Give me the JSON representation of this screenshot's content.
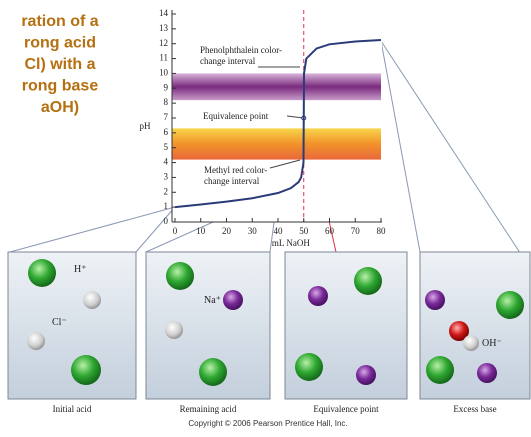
{
  "chart_data": {
    "type": "line",
    "title": [
      "ration of a",
      "rong acid",
      "Cl) with a",
      "rong base",
      "aOH)"
    ],
    "x_label": "mL NaOH",
    "y_label": "pH",
    "x": [
      0,
      10,
      20,
      30,
      40,
      45,
      48,
      49,
      49.9,
      50,
      50.1,
      51,
      55,
      60,
      70,
      80
    ],
    "series": [
      {
        "color": "#2b3a78",
        "values": [
          1.0,
          1.18,
          1.37,
          1.6,
          1.95,
          2.28,
          2.69,
          3.0,
          4.0,
          7.0,
          10.0,
          11.0,
          11.68,
          11.96,
          12.15,
          12.25
        ]
      }
    ],
    "xlim": [
      0,
      80
    ],
    "ylim": [
      0,
      14
    ],
    "xticks": [
      0,
      10,
      20,
      30,
      40,
      50,
      60,
      70,
      80
    ],
    "yticks": [
      0,
      1,
      2,
      3,
      4,
      5,
      6,
      7,
      8,
      9,
      10,
      11,
      12,
      13,
      14
    ],
    "marker": {
      "x": 50,
      "color": "#e0304a"
    },
    "bands": [
      {
        "lines": [
          "Phenolphthalein color-",
          "change interval"
        ],
        "range": [
          8.2,
          10
        ],
        "color": "purple"
      },
      {
        "lines": [
          "Methyl red color-",
          "change interval"
        ],
        "range": [
          4.2,
          6.3
        ],
        "color": "orange"
      }
    ],
    "equivalence": {
      "text": "Equivalence point",
      "x": 50,
      "y": 7
    }
  },
  "panels": [
    {
      "caption": "Initial acid",
      "labels": [
        "H⁺",
        "Cl⁻"
      ]
    },
    {
      "caption": "Remaining acid",
      "labels": [
        "Na⁺"
      ]
    },
    {
      "caption": "Equivalence point",
      "labels": []
    },
    {
      "caption": "Excess base",
      "labels": [
        "OH⁻"
      ]
    }
  ],
  "copyright": "Copyright © 2006 Pearson Prentice Hall, Inc."
}
